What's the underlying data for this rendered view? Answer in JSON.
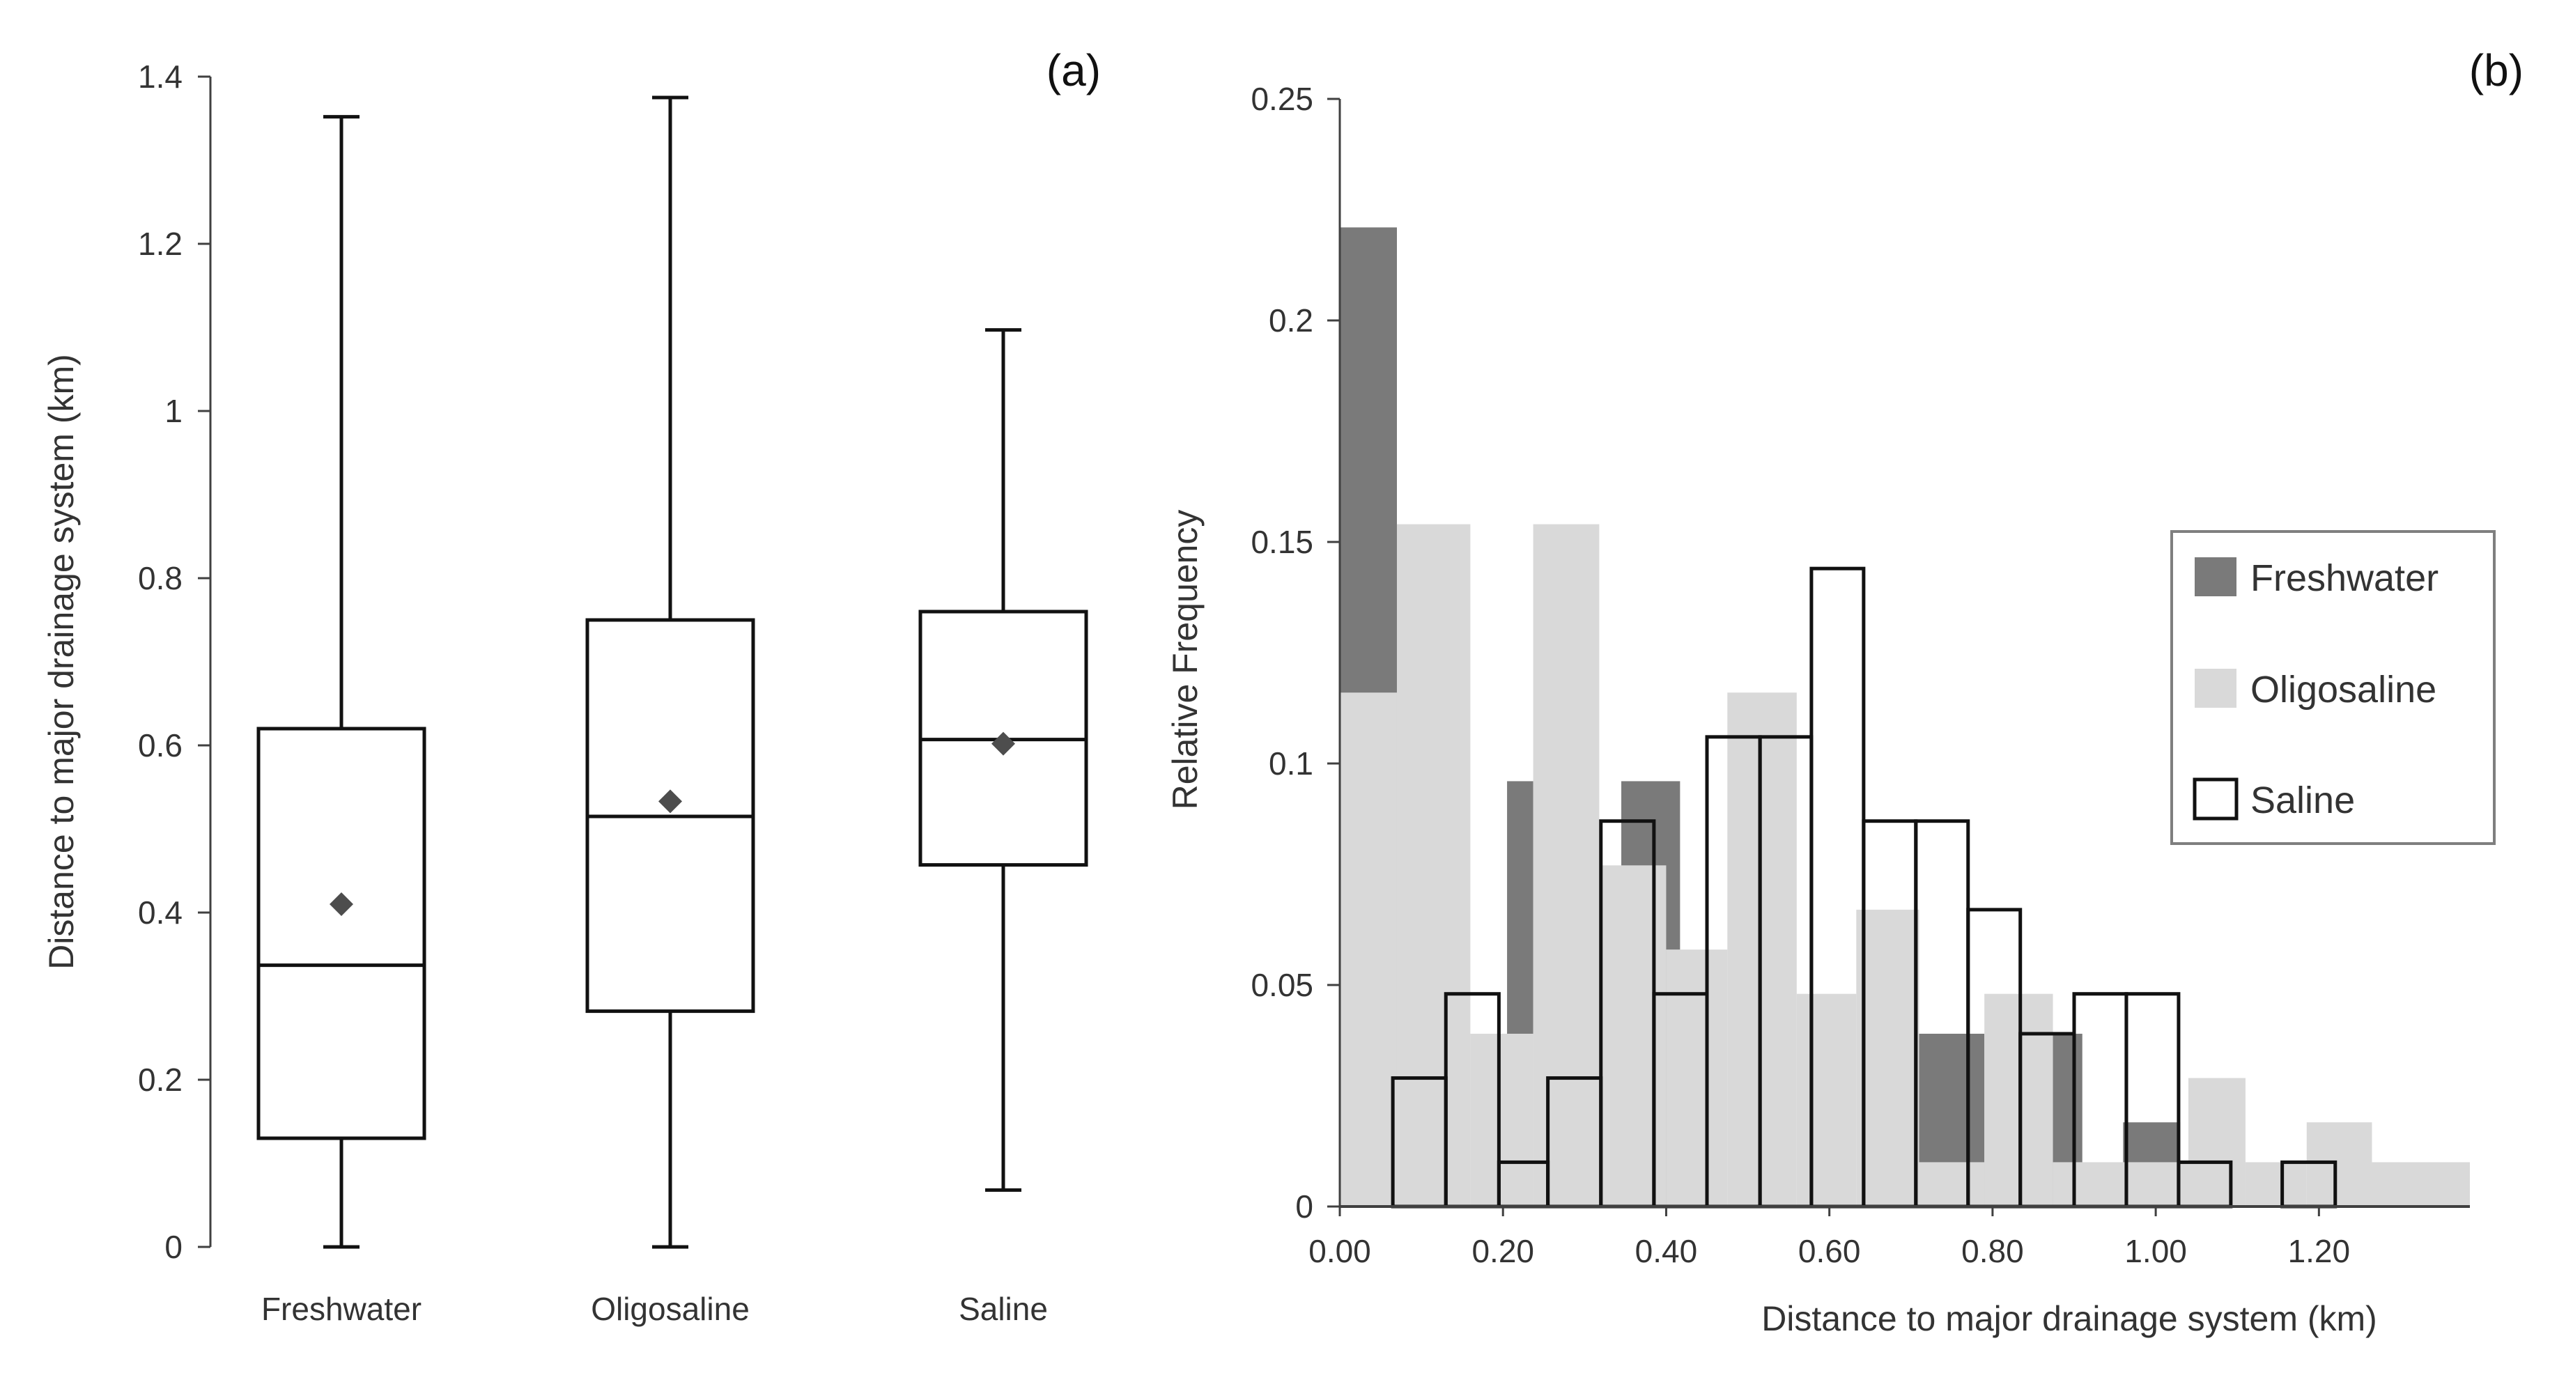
{
  "chart_data": [
    {
      "type": "box",
      "panel_label": "(a)",
      "ylabel": "Distance to major drainage system (km)",
      "ylim": [
        0,
        1.4
      ],
      "yticks": [
        0,
        0.2,
        0.4,
        0.6,
        0.8,
        1,
        1.2,
        1.4
      ],
      "ytick_labels": [
        "0",
        "0.2",
        "0.4",
        "0.6",
        "0.8",
        "1",
        "1.2",
        "1.4"
      ],
      "categories": [
        "Freshwater",
        "Oligosaline",
        "Saline"
      ],
      "boxes": [
        {
          "name": "Freshwater",
          "min": 0.0,
          "q1": 0.13,
          "median": 0.337,
          "q3": 0.62,
          "max": 1.352,
          "mean": 0.41
        },
        {
          "name": "Oligosaline",
          "min": 0.0,
          "q1": 0.282,
          "median": 0.515,
          "q3": 0.75,
          "max": 1.375,
          "mean": 0.533
        },
        {
          "name": "Saline",
          "min": 0.068,
          "q1": 0.457,
          "median": 0.607,
          "q3": 0.76,
          "max": 1.097,
          "mean": 0.602
        }
      ]
    },
    {
      "type": "histogram",
      "panel_label": "(b)",
      "xlabel": "Distance to major drainage system (km)",
      "ylabel": "Relative Frequency",
      "xlim": [
        0,
        1.385
      ],
      "ylim": [
        0,
        0.25
      ],
      "xticks": [
        0,
        0.2,
        0.4,
        0.6,
        0.8,
        1.0,
        1.2
      ],
      "xtick_labels": [
        "0.00",
        "0.20",
        "0.40",
        "0.60",
        "0.80",
        "1.00",
        "1.20"
      ],
      "yticks": [
        0,
        0.05,
        0.1,
        0.15,
        0.2,
        0.25
      ],
      "ytick_labels": [
        "0",
        "0.05",
        "0.1",
        "0.15",
        "0.2",
        "0.25"
      ],
      "legend_position": "right",
      "series": [
        {
          "name": "Freshwater",
          "color": "#7a7a7a",
          "bins": [
            [
              0.0,
              0.07,
              0.221
            ],
            [
              0.205,
              0.237,
              0.096
            ],
            [
              0.345,
              0.417,
              0.096
            ],
            [
              0.71,
              0.79,
              0.039
            ],
            [
              0.87,
              0.91,
              0.039
            ],
            [
              0.96,
              1.03,
              0.019
            ]
          ]
        },
        {
          "name": "Oligosaline",
          "color": "#d9d9d9",
          "bins": [
            [
              0.0,
              0.07,
              0.116
            ],
            [
              0.07,
              0.16,
              0.154
            ],
            [
              0.16,
              0.237,
              0.039
            ],
            [
              0.237,
              0.318,
              0.154
            ],
            [
              0.318,
              0.4,
              0.077
            ],
            [
              0.4,
              0.475,
              0.058
            ],
            [
              0.475,
              0.56,
              0.116
            ],
            [
              0.56,
              0.633,
              0.048
            ],
            [
              0.633,
              0.71,
              0.067
            ],
            [
              0.71,
              0.79,
              0.01
            ],
            [
              0.79,
              0.874,
              0.048
            ],
            [
              0.874,
              0.965,
              0.01
            ],
            [
              0.965,
              1.04,
              0.01
            ],
            [
              1.04,
              1.11,
              0.029
            ],
            [
              1.11,
              1.185,
              0.01
            ],
            [
              1.185,
              1.265,
              0.019
            ],
            [
              1.265,
              1.385,
              0.01
            ]
          ]
        },
        {
          "name": "Saline",
          "color": "#ffffff",
          "bins": [
            [
              0.065,
              0.13,
              0.029
            ],
            [
              0.13,
              0.195,
              0.048
            ],
            [
              0.195,
              0.255,
              0.01
            ],
            [
              0.255,
              0.32,
              0.029
            ],
            [
              0.32,
              0.385,
              0.087
            ],
            [
              0.385,
              0.45,
              0.048
            ],
            [
              0.45,
              0.515,
              0.106
            ],
            [
              0.515,
              0.578,
              0.106
            ],
            [
              0.578,
              0.642,
              0.144
            ],
            [
              0.642,
              0.706,
              0.087
            ],
            [
              0.706,
              0.77,
              0.087
            ],
            [
              0.77,
              0.834,
              0.067
            ],
            [
              0.834,
              0.9,
              0.039
            ],
            [
              0.9,
              0.964,
              0.048
            ],
            [
              0.964,
              1.028,
              0.048
            ],
            [
              1.028,
              1.092,
              0.01
            ],
            [
              1.092,
              1.155,
              0.0
            ],
            [
              1.155,
              1.22,
              0.01
            ]
          ]
        }
      ]
    }
  ]
}
